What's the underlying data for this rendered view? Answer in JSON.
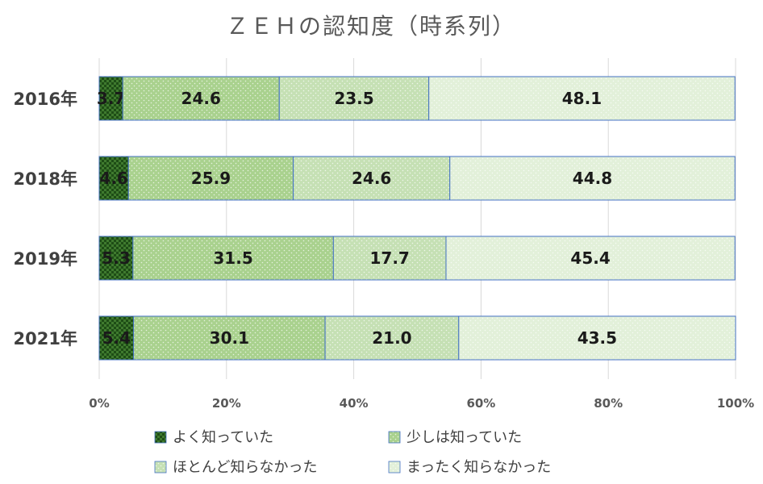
{
  "chart_data": {
    "type": "bar",
    "orientation": "horizontal",
    "stacked": "percent",
    "title": "ＺＥＨの認知度（時系列）",
    "categories": [
      "2016年",
      "2018年",
      "2019年",
      "2021年"
    ],
    "series": [
      {
        "name": "よく知っていた",
        "values": [
          3.7,
          4.6,
          5.3,
          5.4
        ],
        "color": "#3f7a2e",
        "pattern": "checker"
      },
      {
        "name": "少しは知っていた",
        "values": [
          24.6,
          25.9,
          31.5,
          30.1
        ],
        "color": "#a9d18e",
        "pattern": "dots"
      },
      {
        "name": "ほとんど知らなかった",
        "values": [
          23.5,
          24.6,
          17.7,
          21.0
        ],
        "color": "#c5e0b4",
        "pattern": "dots"
      },
      {
        "name": "まったく知らなかった",
        "values": [
          48.1,
          44.8,
          45.4,
          43.5
        ],
        "color": "#e2f0d9",
        "pattern": "dots"
      }
    ],
    "value_labels": [
      [
        "3.7",
        "4.6",
        "5.3",
        "5.4"
      ],
      [
        "24.6",
        "25.9",
        "31.5",
        "30.1"
      ],
      [
        "23.5",
        "24.6",
        "17.7",
        "21.0"
      ],
      [
        "48.1",
        "44.8",
        "45.4",
        "43.5"
      ]
    ],
    "x_ticks": [
      "0%",
      "20%",
      "40%",
      "60%",
      "80%",
      "100%"
    ],
    "xlim": [
      0,
      100
    ],
    "grid": true,
    "legend_position": "bottom",
    "bar_border_color": "#4472c4"
  }
}
